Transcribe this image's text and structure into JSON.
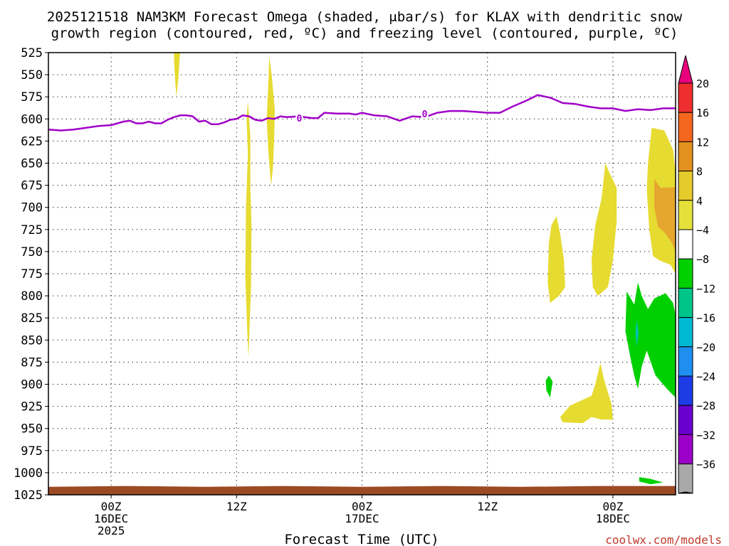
{
  "chart_data": {
    "type": "time-height cross section (filled contours)",
    "title_line1": "2025121518 NAM3KM Forecast Omega (shaded, μbar/s) for KLAX with dendritic snow",
    "title_line2": "growth region (contoured, red, ºC) and freezing level (contoured, purple, ºC)",
    "xlabel": "Forecast Time (UTC)",
    "credit": "coolwx.com/models",
    "x_unit": "forecast hour",
    "xlim": [
      -5,
      45
    ],
    "y_unit": "hPa",
    "ylim": [
      525,
      1025
    ],
    "y_ticks": [
      525,
      550,
      575,
      600,
      625,
      650,
      675,
      700,
      725,
      750,
      775,
      800,
      825,
      850,
      875,
      900,
      925,
      950,
      975,
      1000,
      1025
    ],
    "x_ticks": [
      {
        "x": 0,
        "label1": "00Z",
        "label2": "16DEC",
        "label3": "2025"
      },
      {
        "x": 10,
        "label1": "12Z",
        "label2": "",
        "label3": ""
      },
      {
        "x": 20,
        "label1": "00Z",
        "label2": "17DEC",
        "label3": ""
      },
      {
        "x": 30,
        "label1": "12Z",
        "label2": "",
        "label3": ""
      },
      {
        "x": 40,
        "label1": "00Z",
        "label2": "18DEC",
        "label3": ""
      }
    ],
    "freezing_level": {
      "label": "0",
      "color": "#a000c8",
      "x": [
        -5,
        -4,
        -3,
        -2,
        -1,
        0,
        1,
        1.5,
        2,
        2.5,
        3,
        3.5,
        4,
        4.5,
        5,
        5.5,
        6,
        6.5,
        7,
        7.5,
        8,
        8.5,
        9,
        9.5,
        10,
        10.5,
        11,
        11.5,
        12,
        12.5,
        13,
        13.5,
        14,
        15,
        16,
        16.5,
        17,
        18,
        19,
        19.5,
        20,
        21,
        22,
        23,
        24,
        25,
        26,
        27,
        28,
        29,
        30,
        31,
        32,
        33,
        34,
        35,
        36,
        37,
        38,
        39,
        40,
        41,
        42,
        43,
        44,
        45
      ],
      "p": [
        612,
        613,
        612,
        610,
        608,
        607,
        603,
        602,
        605,
        605,
        603,
        605,
        605,
        601,
        598,
        596,
        596,
        597,
        603,
        602,
        606,
        606,
        604,
        601,
        600,
        596,
        597,
        601,
        602,
        599,
        600,
        597,
        598,
        597,
        599,
        599,
        593,
        594,
        594,
        595,
        593,
        596,
        597,
        602,
        597,
        598,
        593,
        591,
        591,
        592,
        593,
        593,
        586,
        580,
        573,
        576,
        582,
        583,
        586,
        588,
        588,
        591,
        589,
        590,
        588,
        588
      ],
      "label_positions": [
        [
          15,
          599
        ],
        [
          25,
          594
        ]
      ]
    },
    "omega_shaded_regions": [
      {
        "level": "4 to 8",
        "color": "#e6db31",
        "points": [
          [
            5,
            525
          ],
          [
            5.5,
            525
          ],
          [
            5.35,
            555
          ],
          [
            5.2,
            575
          ],
          [
            5.05,
            545
          ]
        ]
      },
      {
        "level": "4 to 8",
        "color": "#e6db31",
        "points": [
          [
            12.6,
            530
          ],
          [
            12.8,
            550
          ],
          [
            13.05,
            590
          ],
          [
            13.0,
            620
          ],
          [
            12.9,
            655
          ],
          [
            12.75,
            675
          ],
          [
            12.55,
            640
          ],
          [
            12.4,
            600
          ],
          [
            12.55,
            555
          ]
        ]
      },
      {
        "level": "4 to 8",
        "color": "#e6db31",
        "points": [
          [
            10.9,
            580
          ],
          [
            11.1,
            620
          ],
          [
            11.1,
            680
          ],
          [
            11.2,
            720
          ],
          [
            11.15,
            790
          ],
          [
            11.05,
            830
          ],
          [
            10.95,
            870
          ],
          [
            10.85,
            840
          ],
          [
            10.7,
            780
          ],
          [
            10.75,
            700
          ],
          [
            10.9,
            640
          ],
          [
            10.8,
            600
          ]
        ]
      },
      {
        "level": "4 to 8",
        "color": "#e6db31",
        "points": [
          [
            35.5,
            710
          ],
          [
            35.8,
            730
          ],
          [
            36.1,
            760
          ],
          [
            36.2,
            790
          ],
          [
            35.7,
            800
          ],
          [
            35.0,
            808
          ],
          [
            34.8,
            785
          ],
          [
            34.9,
            740
          ],
          [
            35.1,
            720
          ]
        ]
      },
      {
        "level": "4 to 8",
        "color": "#e6db31",
        "points": [
          [
            39.4,
            650
          ],
          [
            39.7,
            660
          ],
          [
            40.3,
            678
          ],
          [
            40.3,
            715
          ],
          [
            40.0,
            760
          ],
          [
            39.6,
            790
          ],
          [
            38.8,
            800
          ],
          [
            38.4,
            790
          ],
          [
            38.3,
            760
          ],
          [
            38.6,
            720
          ],
          [
            39.1,
            690
          ]
        ]
      },
      {
        "level": "4 to 8",
        "color": "#e6db31",
        "points": [
          [
            43.1,
            610
          ],
          [
            44.1,
            613
          ],
          [
            44.8,
            635
          ],
          [
            45,
            660
          ],
          [
            45,
            775
          ],
          [
            44.6,
            765
          ],
          [
            43.7,
            760
          ],
          [
            43.2,
            755
          ],
          [
            42.9,
            725
          ],
          [
            42.7,
            680
          ],
          [
            42.8,
            650
          ]
        ]
      },
      {
        "level": "8 to 12",
        "color": "#e5a62e",
        "points": [
          [
            43.3,
            668
          ],
          [
            43.8,
            678
          ],
          [
            45,
            677
          ],
          [
            45,
            750
          ],
          [
            44.7,
            740
          ],
          [
            44.1,
            728
          ],
          [
            43.6,
            722
          ],
          [
            43.3,
            700
          ]
        ]
      },
      {
        "level": "-4 to -8",
        "color": "#00d000",
        "points": [
          [
            42.0,
            785
          ],
          [
            41.7,
            810
          ],
          [
            41.1,
            795
          ],
          [
            41.0,
            840
          ],
          [
            41.4,
            870
          ],
          [
            41.7,
            890
          ],
          [
            42.0,
            905
          ],
          [
            42.3,
            880
          ],
          [
            42.7,
            862
          ],
          [
            43.4,
            890
          ],
          [
            44.3,
            905
          ],
          [
            45,
            915
          ],
          [
            45,
            822
          ],
          [
            44.8,
            808
          ],
          [
            44.2,
            797
          ],
          [
            43.3,
            803
          ],
          [
            42.8,
            815
          ],
          [
            42.3,
            800
          ]
        ]
      },
      {
        "level": "-12 to -16",
        "color": "#00c1b3",
        "points": [
          [
            41.9,
            827
          ],
          [
            42.05,
            842
          ],
          [
            41.9,
            858
          ],
          [
            41.8,
            842
          ]
        ]
      },
      {
        "level": "4 to 8",
        "color": "#e6db31",
        "points": [
          [
            39.0,
            876
          ],
          [
            39.3,
            895
          ],
          [
            39.9,
            923
          ],
          [
            40.0,
            940
          ],
          [
            39.1,
            940
          ],
          [
            38.3,
            937
          ],
          [
            37.6,
            944
          ],
          [
            36.0,
            943
          ],
          [
            35.8,
            937
          ],
          [
            36.6,
            924
          ],
          [
            38.3,
            913
          ],
          [
            38.6,
            900
          ]
        ]
      },
      {
        "level": "-4 to -8",
        "color": "#00d000",
        "points": [
          [
            34.9,
            890
          ],
          [
            35.2,
            897
          ],
          [
            35.0,
            915
          ],
          [
            34.7,
            907
          ],
          [
            34.65,
            896
          ]
        ]
      },
      {
        "level": "-4 to -8",
        "color": "#00d000",
        "points": [
          [
            42.1,
            1005
          ],
          [
            43.0,
            1007
          ],
          [
            44.0,
            1011
          ],
          [
            43.0,
            1013
          ],
          [
            42.1,
            1010
          ]
        ]
      }
    ],
    "terrain": {
      "color": "#9c4a24",
      "top_p": [
        1016,
        1015,
        1016,
        1015,
        1016,
        1015,
        1016,
        1015,
        1015
      ]
    },
    "colorbar": {
      "levels": [
        "20",
        "16",
        "12",
        "8",
        "4",
        "−4",
        "−8",
        "−12",
        "−16",
        "−20",
        "−24",
        "−28",
        "−32",
        "−36"
      ],
      "colors": [
        "#e6007e",
        "#ee2f2f",
        "#f5661e",
        "#e2911e",
        "#e6cb2c",
        "#e6e13a",
        "#ffffff",
        "#00d000",
        "#00c58a",
        "#00b9d3",
        "#1e8ff0",
        "#1e3ce6",
        "#6a00d0",
        "#9b00c8",
        "#a9a9a9",
        "#000000"
      ]
    }
  }
}
